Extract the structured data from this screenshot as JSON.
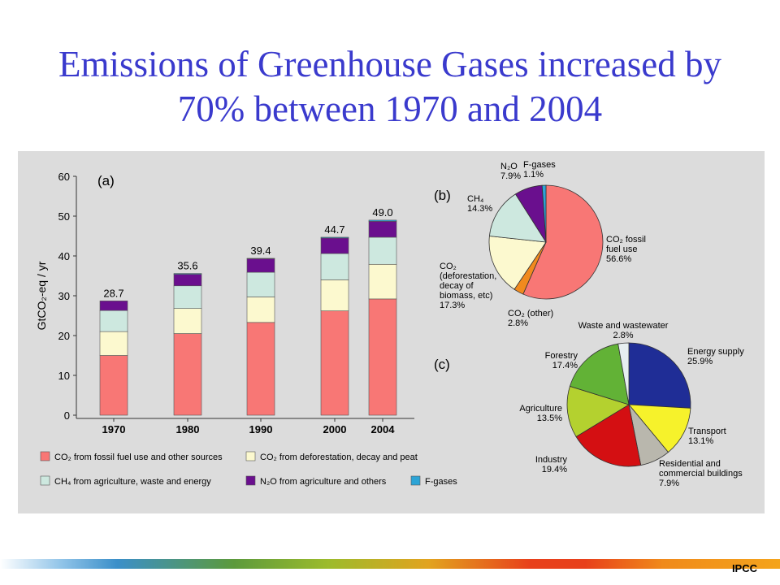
{
  "slide": {
    "title_line1": "Emissions of Greenhouse Gases increased by",
    "title_line2": "70% between 1970 and 2004",
    "footer_logo": "IPCC"
  },
  "chart_data": [
    {
      "type": "bar",
      "panel_label": "(a)",
      "ylabel": "GtCO₂-eq / yr",
      "ylim": [
        0,
        60
      ],
      "yticks": [
        0,
        10,
        20,
        30,
        40,
        50,
        60
      ],
      "categories": [
        "1970",
        "1980",
        "1990",
        "2000",
        "2004"
      ],
      "totals": [
        "28.7",
        "35.6",
        "39.4",
        "44.7",
        "49.0"
      ],
      "series": [
        {
          "name": "CO₂ from fossil fuel use and other sources",
          "color": "#f87775",
          "values": [
            15.0,
            20.5,
            23.3,
            26.2,
            29.2
          ]
        },
        {
          "name": "CO₂ from deforestation, decay and peat",
          "color": "#fcf9cf",
          "values": [
            6.0,
            6.3,
            6.4,
            7.8,
            8.7
          ]
        },
        {
          "name": "CH₄ from agriculture, waste and energy",
          "color": "#cde8df",
          "values": [
            5.3,
            5.7,
            6.2,
            6.6,
            6.8
          ]
        },
        {
          "name": "N₂O from agriculture and others",
          "color": "#6a0f8e",
          "values": [
            2.4,
            2.9,
            3.4,
            3.9,
            4.0
          ]
        },
        {
          "name": "F-gases",
          "color": "#2ca4d6",
          "values": [
            0.0,
            0.2,
            0.1,
            0.2,
            0.3
          ]
        }
      ],
      "legend_position": "bottom"
    },
    {
      "type": "pie",
      "panel_label": "(b)",
      "slices": [
        {
          "label": [
            "CO₂ fossil",
            "fuel use",
            "56.6%"
          ],
          "value": 56.6,
          "color": "#f87775"
        },
        {
          "label": [
            "CO₂ (other)",
            "2.8%"
          ],
          "value": 2.8,
          "color": "#f18a1e"
        },
        {
          "label": [
            "CO₂",
            "(deforestation,",
            "decay of",
            "biomass, etc)",
            "17.3%"
          ],
          "value": 17.3,
          "color": "#fcf9cf"
        },
        {
          "label": [
            "CH₄",
            "14.3%"
          ],
          "value": 14.3,
          "color": "#cde8df"
        },
        {
          "label": [
            "N₂O",
            "7.9%"
          ],
          "value": 7.9,
          "color": "#6a0f8e"
        },
        {
          "label": [
            "F-gases",
            "1.1%"
          ],
          "value": 1.1,
          "color": "#2ca4d6"
        }
      ]
    },
    {
      "type": "pie",
      "panel_label": "(c)",
      "slices": [
        {
          "label": [
            "Energy supply",
            "25.9%"
          ],
          "value": 25.9,
          "color": "#1f2d96"
        },
        {
          "label": [
            "Transport",
            "13.1%"
          ],
          "value": 13.1,
          "color": "#f6f22b"
        },
        {
          "label": [
            "Residential and",
            "commercial buildings",
            "7.9%"
          ],
          "value": 7.9,
          "color": "#b9b7ad"
        },
        {
          "label": [
            "Industry",
            "19.4%"
          ],
          "value": 19.4,
          "color": "#d40f12"
        },
        {
          "label": [
            "Agriculture",
            "13.5%"
          ],
          "value": 13.5,
          "color": "#b4d12f"
        },
        {
          "label": [
            "Forestry",
            "17.4%"
          ],
          "value": 17.4,
          "color": "#62b236"
        },
        {
          "label": [
            "Waste and wastewater",
            "2.8%"
          ],
          "value": 2.8,
          "color": "#e6eef0"
        }
      ]
    }
  ]
}
